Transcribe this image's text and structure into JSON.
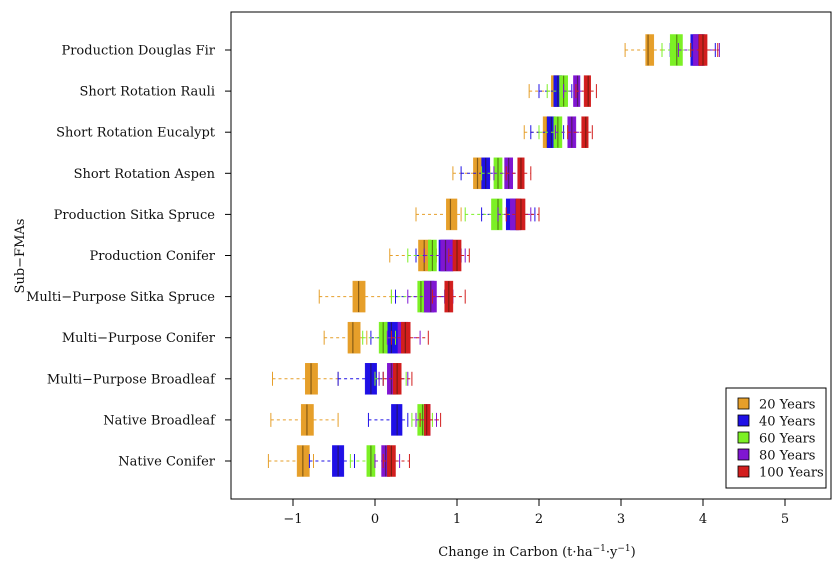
{
  "chart_data": {
    "type": "boxplot",
    "orientation": "horizontal",
    "xlabel_base": "Change in Carbon (t·ha",
    "xlabel_mid": "·y",
    "xlabel_close": ")",
    "xlabel_sup": "−1",
    "ylabel": "Sub−FMAs",
    "xlim": [
      -1.75,
      5.6
    ],
    "xticks": [
      -1,
      0,
      1,
      2,
      3,
      4,
      5
    ],
    "xtick_labels": [
      "−1",
      "0",
      "1",
      "2",
      "3",
      "4",
      "5"
    ],
    "grid": false,
    "legend_position": "bottom-right",
    "categories": [
      "Production Douglas Fir",
      "Short Rotation Rauli",
      "Short Rotation Eucalypt",
      "Short Rotation Aspen",
      "Production Sitka Spruce",
      "Production Conifer",
      "Multi−Purpose Sitka Spruce",
      "Multi−Purpose Conifer",
      "Multi−Purpose Broadleaf",
      "Native Broadleaf",
      "Native Conifer"
    ],
    "series": [
      {
        "name": "20 Years",
        "color": "#E69F2A",
        "boxes": [
          {
            "min": 3.05,
            "q1": 3.3,
            "median": 3.33,
            "q3": 3.4,
            "max": 3.5
          },
          {
            "min": 1.88,
            "q1": 2.15,
            "median": 2.2,
            "q3": 2.25,
            "max": 2.3
          },
          {
            "min": 1.82,
            "q1": 2.05,
            "median": 2.1,
            "q3": 2.15,
            "max": 2.2
          },
          {
            "min": 0.95,
            "q1": 1.2,
            "median": 1.25,
            "q3": 1.3,
            "max": 1.4
          },
          {
            "min": 0.5,
            "q1": 0.87,
            "median": 0.92,
            "q3": 1.0,
            "max": 1.05
          },
          {
            "min": 0.18,
            "q1": 0.53,
            "median": 0.6,
            "q3": 0.68,
            "max": 0.75
          },
          {
            "min": -0.68,
            "q1": -0.27,
            "median": -0.2,
            "q3": -0.12,
            "max": 0.2
          },
          {
            "min": -0.62,
            "q1": -0.33,
            "median": -0.27,
            "q3": -0.18,
            "max": -0.1
          },
          {
            "min": -1.25,
            "q1": -0.85,
            "median": -0.78,
            "q3": -0.7,
            "max": -0.45
          },
          {
            "min": -1.27,
            "q1": -0.9,
            "median": -0.83,
            "q3": -0.75,
            "max": -0.45
          },
          {
            "min": -1.3,
            "q1": -0.95,
            "median": -0.88,
            "q3": -0.8,
            "max": -0.75
          }
        ]
      },
      {
        "name": "40 Years",
        "color": "#1F10E6",
        "boxes": [
          {
            "min": 3.6,
            "q1": 3.85,
            "median": 3.92,
            "q3": 4.0,
            "max": 4.15
          },
          {
            "min": 2.0,
            "q1": 2.18,
            "median": 2.23,
            "q3": 2.28,
            "max": 2.4
          },
          {
            "min": 1.9,
            "q1": 2.1,
            "median": 2.15,
            "q3": 2.2,
            "max": 2.3
          },
          {
            "min": 1.05,
            "q1": 1.3,
            "median": 1.35,
            "q3": 1.4,
            "max": 1.5
          },
          {
            "min": 1.3,
            "q1": 1.6,
            "median": 1.68,
            "q3": 1.75,
            "max": 1.95
          },
          {
            "min": 0.5,
            "q1": 0.78,
            "median": 0.85,
            "q3": 0.95,
            "max": 1.05
          },
          {
            "min": 0.25,
            "q1": 0.58,
            "median": 0.65,
            "q3": 0.72,
            "max": 0.85
          },
          {
            "min": -0.05,
            "q1": 0.13,
            "median": 0.2,
            "q3": 0.28,
            "max": 0.35
          },
          {
            "min": -0.45,
            "q1": -0.12,
            "median": -0.05,
            "q3": 0.02,
            "max": 0.1
          },
          {
            "min": -0.08,
            "q1": 0.2,
            "median": 0.27,
            "q3": 0.33,
            "max": 0.4
          },
          {
            "min": -0.8,
            "q1": -0.52,
            "median": -0.45,
            "q3": -0.38,
            "max": -0.25
          }
        ]
      },
      {
        "name": "60 Years",
        "color": "#7CF025",
        "boxes": [
          {
            "min": 3.5,
            "q1": 3.6,
            "median": 3.68,
            "q3": 3.75,
            "max": 3.85
          },
          {
            "min": 2.1,
            "q1": 2.25,
            "median": 2.3,
            "q3": 2.35,
            "max": 2.45
          },
          {
            "min": 2.0,
            "q1": 2.18,
            "median": 2.23,
            "q3": 2.28,
            "max": 2.35
          },
          {
            "min": 1.3,
            "q1": 1.45,
            "median": 1.5,
            "q3": 1.55,
            "max": 1.65
          },
          {
            "min": 1.1,
            "q1": 1.42,
            "median": 1.5,
            "q3": 1.55,
            "max": 1.7
          },
          {
            "min": 0.4,
            "q1": 0.65,
            "median": 0.7,
            "q3": 0.75,
            "max": 0.85
          },
          {
            "min": 0.2,
            "q1": 0.52,
            "median": 0.56,
            "q3": 0.62,
            "max": 0.7
          },
          {
            "min": -0.15,
            "q1": 0.05,
            "median": 0.1,
            "q3": 0.15,
            "max": 0.25
          },
          {
            "min": 0.0,
            "q1": 0.18,
            "median": 0.24,
            "q3": 0.3,
            "max": 0.38
          },
          {
            "min": 0.45,
            "q1": 0.52,
            "median": 0.58,
            "q3": 0.62,
            "max": 0.7
          },
          {
            "min": -0.3,
            "q1": -0.1,
            "median": -0.05,
            "q3": 0.0,
            "max": 0.1
          }
        ]
      },
      {
        "name": "80 Years",
        "color": "#8016D2",
        "boxes": [
          {
            "min": 3.7,
            "q1": 3.88,
            "median": 3.95,
            "q3": 4.02,
            "max": 4.2
          },
          {
            "min": 2.3,
            "q1": 2.42,
            "median": 2.47,
            "q3": 2.5,
            "max": 2.6
          },
          {
            "min": 2.2,
            "q1": 2.35,
            "median": 2.4,
            "q3": 2.45,
            "max": 2.55
          },
          {
            "min": 1.45,
            "q1": 1.58,
            "median": 1.63,
            "q3": 1.68,
            "max": 1.78
          },
          {
            "min": 1.5,
            "q1": 1.65,
            "median": 1.72,
            "q3": 1.78,
            "max": 1.9
          },
          {
            "min": 0.6,
            "q1": 0.8,
            "median": 0.86,
            "q3": 0.95,
            "max": 1.1
          },
          {
            "min": 0.4,
            "q1": 0.6,
            "median": 0.68,
            "q3": 0.75,
            "max": 0.95
          },
          {
            "min": 0.15,
            "q1": 0.28,
            "median": 0.34,
            "q3": 0.4,
            "max": 0.55
          },
          {
            "min": 0.05,
            "q1": 0.15,
            "median": 0.2,
            "q3": 0.25,
            "max": 0.4
          },
          {
            "min": 0.5,
            "q1": 0.6,
            "median": 0.62,
            "q3": 0.65,
            "max": 0.75
          },
          {
            "min": 0.0,
            "q1": 0.08,
            "median": 0.13,
            "q3": 0.18,
            "max": 0.3
          }
        ]
      },
      {
        "name": "100 Years",
        "color": "#D21E1E",
        "boxes": [
          {
            "min": 3.85,
            "q1": 3.95,
            "median": 4.0,
            "q3": 4.05,
            "max": 4.18
          },
          {
            "min": 2.45,
            "q1": 2.55,
            "median": 2.6,
            "q3": 2.63,
            "max": 2.7
          },
          {
            "min": 2.35,
            "q1": 2.52,
            "median": 2.57,
            "q3": 2.6,
            "max": 2.65
          },
          {
            "min": 1.6,
            "q1": 1.74,
            "median": 1.78,
            "q3": 1.82,
            "max": 1.9
          },
          {
            "min": 1.6,
            "q1": 1.72,
            "median": 1.78,
            "q3": 1.83,
            "max": 2.0
          },
          {
            "min": 0.9,
            "q1": 0.95,
            "median": 1.0,
            "q3": 1.05,
            "max": 1.15
          },
          {
            "min": 0.7,
            "q1": 0.85,
            "median": 0.9,
            "q3": 0.95,
            "max": 1.1
          },
          {
            "min": 0.2,
            "q1": 0.32,
            "median": 0.37,
            "q3": 0.43,
            "max": 0.65
          },
          {
            "min": 0.1,
            "q1": 0.22,
            "median": 0.27,
            "q3": 0.32,
            "max": 0.45
          },
          {
            "min": 0.55,
            "q1": 0.6,
            "median": 0.63,
            "q3": 0.67,
            "max": 0.8
          },
          {
            "min": 0.1,
            "q1": 0.15,
            "median": 0.2,
            "q3": 0.25,
            "max": 0.42
          }
        ]
      }
    ]
  }
}
